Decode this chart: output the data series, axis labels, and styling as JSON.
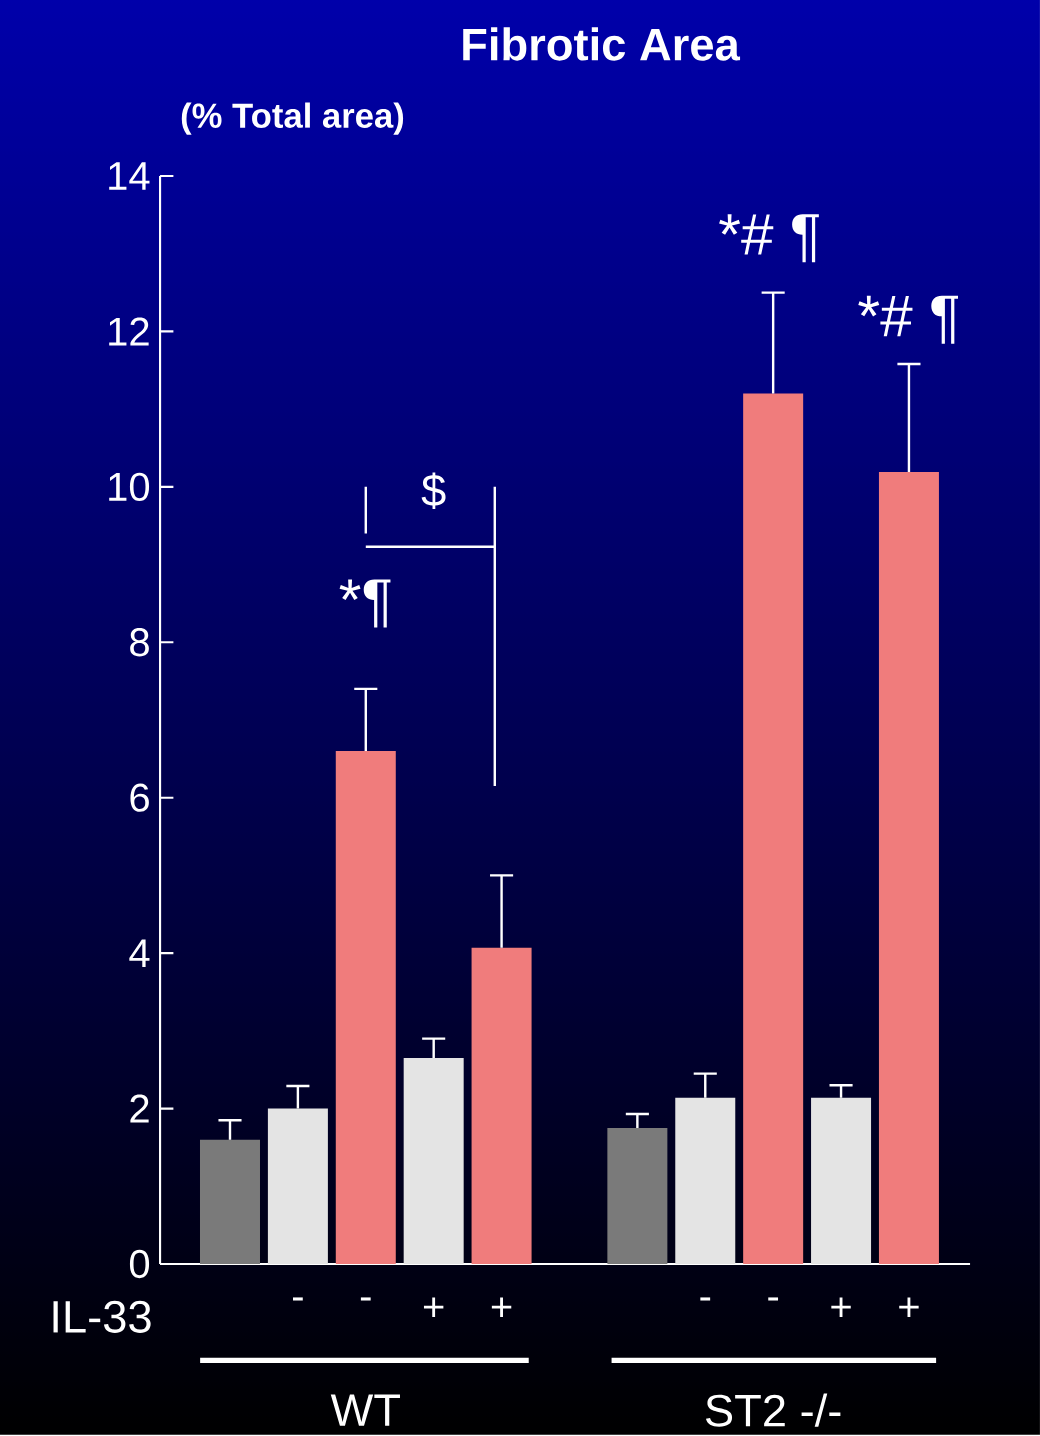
{
  "chart_data": {
    "type": "bar",
    "title": "Fibrotic Area",
    "ylabel": "(% Total area)",
    "categories": [
      null,
      "-",
      "-",
      "+",
      "+",
      null,
      "-",
      "-",
      "+",
      "+"
    ],
    "values": [
      1.6,
      2.0,
      6.6,
      2.65,
      4.07,
      1.75,
      2.14,
      11.2,
      2.14,
      10.19
    ],
    "colors": [
      "#7a7a7a",
      "#e4e4e4",
      "#f07c7c",
      "#e4e4e4",
      "#f07c7c",
      "#7a7a7a",
      "#e4e4e4",
      "#f07c7c",
      "#e4e4e4",
      "#f07c7c"
    ],
    "errors": [
      [
        1.6,
        1.85
      ],
      [
        2.0,
        2.29
      ],
      [
        6.6,
        7.4
      ],
      [
        2.65,
        2.9
      ],
      [
        4.07,
        5.0
      ],
      [
        1.75,
        1.93
      ],
      [
        2.14,
        2.45
      ],
      [
        11.2,
        12.5
      ],
      [
        2.14,
        2.3
      ],
      [
        10.19,
        11.58
      ]
    ],
    "ylim": [
      0,
      14
    ],
    "yticks": [
      0,
      2,
      4,
      6,
      8,
      10,
      12,
      14
    ],
    "grid": false,
    "annotations": [
      "*¶",
      "$",
      "*# ¶",
      "*# ¶",
      "IL-33",
      "WT",
      "ST2 -/-"
    ]
  }
}
